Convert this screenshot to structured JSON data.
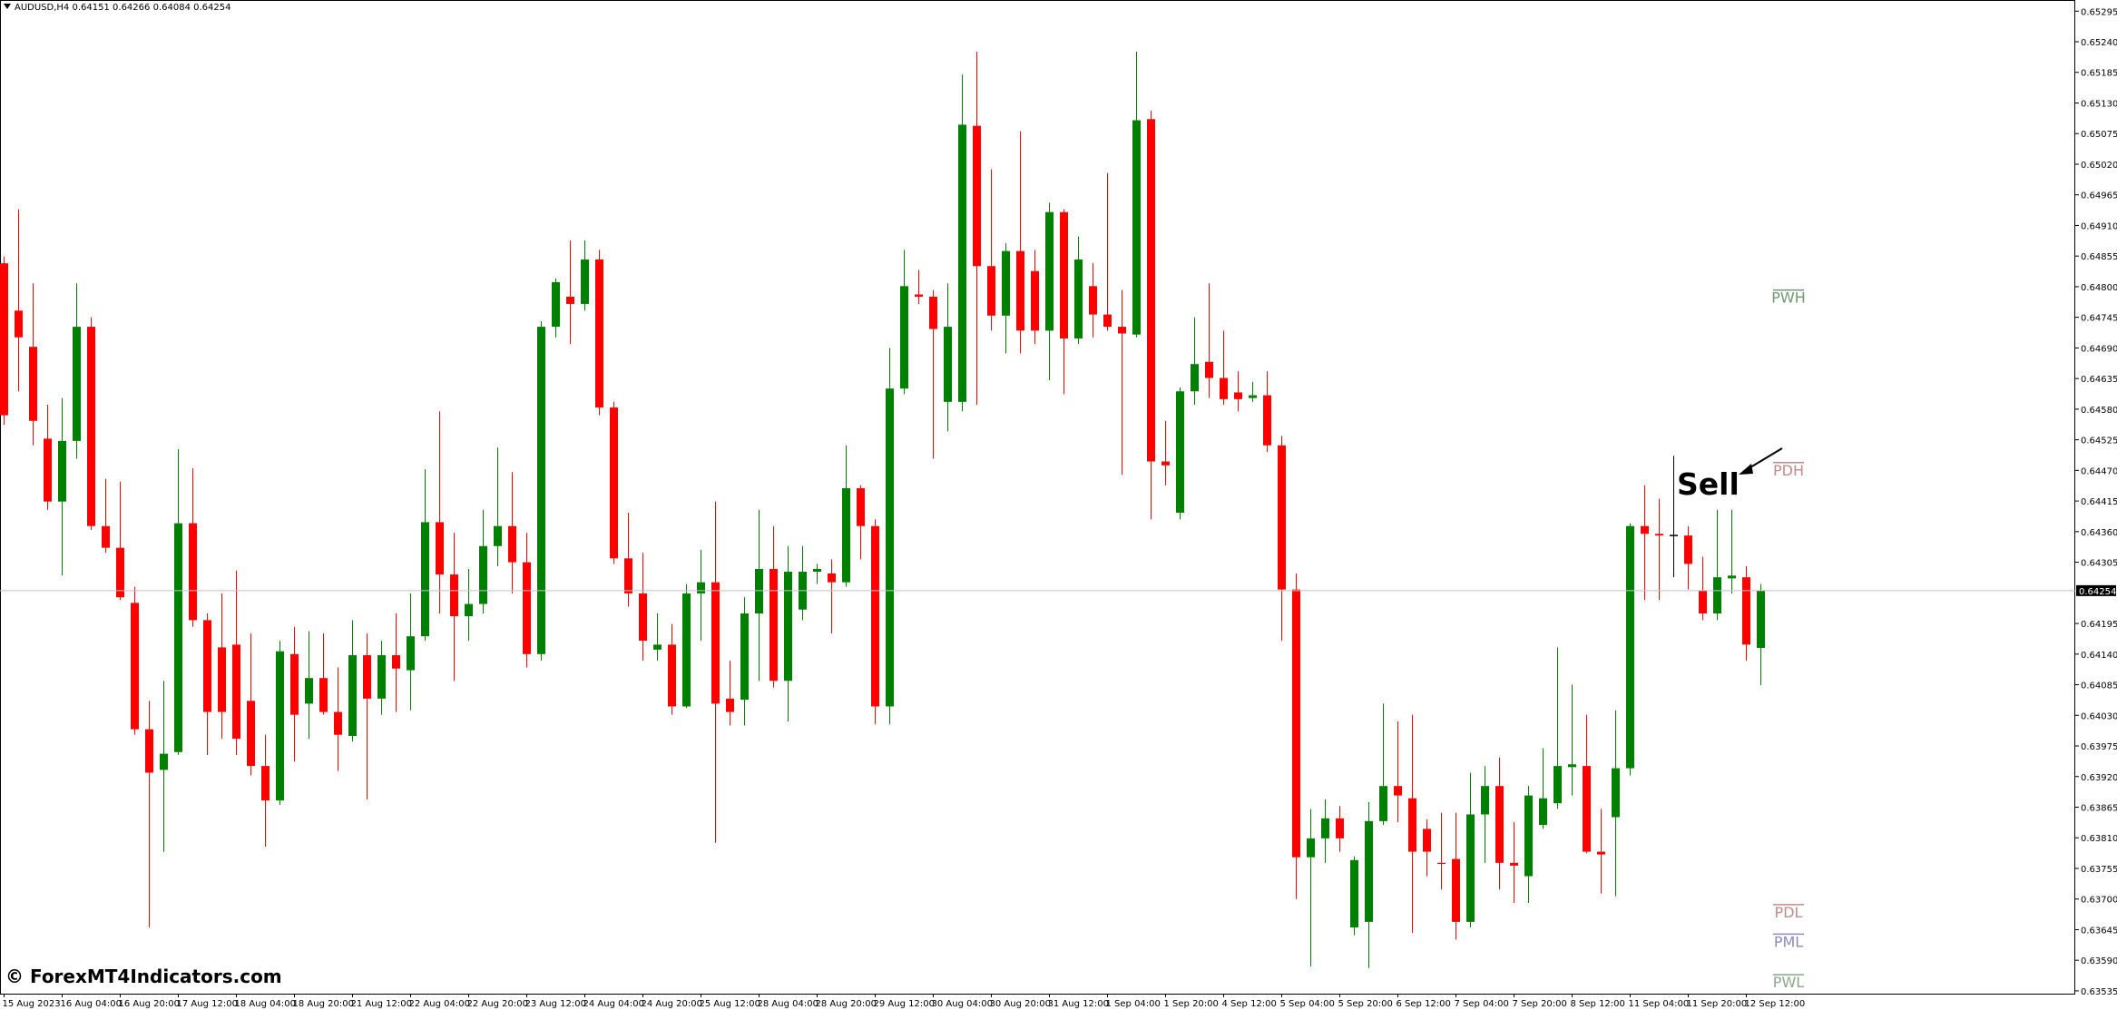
{
  "chart_data": {
    "type": "candlestick",
    "symbol": "AUDUSD,H4",
    "watermark": "© ForexMT4Indicators.com",
    "annotation": "Sell",
    "up_color": "#008000",
    "down_color": "#ff0000",
    "doji_color": "#000000",
    "ylim": [
      0.6353,
      0.65315
    ],
    "yticks": [
      0.65295,
      {
        "value": 0.6524,
        "label": "0.65240"
      },
      0.65185,
      {
        "value": 0.6513,
        "label": "0.65130"
      },
      0.65075,
      {
        "value": 0.6502,
        "label": "0.65020"
      },
      0.64965,
      {
        "value": 0.6491,
        "label": "0.64910"
      },
      0.64855,
      {
        "value": 0.648,
        "label": "0.64800"
      },
      0.64745,
      {
        "value": 0.6469,
        "label": "0.64690"
      },
      0.64635,
      {
        "value": 0.6458,
        "label": "0.64580"
      },
      0.64525,
      {
        "value": 0.6447,
        "label": "0.64470"
      },
      0.64415,
      {
        "value": 0.6436,
        "label": "0.64360"
      },
      0.64305,
      0.64195,
      {
        "value": 0.6414,
        "label": "0.64140"
      },
      0.64085,
      {
        "value": 0.6403,
        "label": "0.64030"
      },
      0.63975,
      {
        "value": 0.6392,
        "label": "0.63920"
      },
      0.63865,
      {
        "value": 0.6381,
        "label": "0.63810"
      },
      0.63755,
      {
        "value": 0.637,
        "label": "0.63700"
      },
      0.63645,
      {
        "value": 0.6359,
        "label": "0.63590"
      },
      0.63535
    ],
    "categories": [
      "15 Aug 2023",
      null,
      null,
      null,
      "16 Aug 04:00",
      null,
      null,
      null,
      "16 Aug 20:00",
      null,
      null,
      null,
      "17 Aug 12:00",
      null,
      null,
      null,
      "18 Aug 04:00",
      null,
      null,
      null,
      "18 Aug 20:00",
      null,
      null,
      null,
      "21 Aug 12:00",
      null,
      null,
      null,
      "22 Aug 04:00",
      null,
      null,
      null,
      "22 Aug 20:00",
      null,
      null,
      null,
      "23 Aug 12:00",
      null,
      null,
      null,
      "24 Aug 04:00",
      null,
      null,
      null,
      "24 Aug 20:00",
      null,
      null,
      null,
      "25 Aug 12:00",
      null,
      null,
      null,
      "28 Aug 04:00",
      null,
      null,
      null,
      "28 Aug 20:00",
      null,
      null,
      null,
      "29 Aug 12:00",
      null,
      null,
      null,
      "30 Aug 04:00",
      null,
      null,
      null,
      "30 Aug 20:00",
      null,
      null,
      null,
      "31 Aug 12:00",
      null,
      null,
      null,
      "1 Sep 04:00",
      null,
      null,
      null,
      "1 Sep 20:00",
      null,
      null,
      null,
      "4 Sep 12:00",
      null,
      null,
      null,
      "5 Sep 04:00",
      null,
      null,
      null,
      "5 Sep 20:00",
      null,
      null,
      null,
      "6 Sep 12:00",
      null,
      null,
      null,
      "7 Sep 04:00",
      null,
      null,
      null,
      "7 Sep 20:00",
      null,
      null,
      null,
      "8 Sep 12:00",
      null,
      null,
      null,
      "11 Sep 04:00",
      null,
      null,
      null,
      "11 Sep 20:00",
      null,
      null,
      null,
      "12 Sep 12:00",
      null
    ],
    "open": [
      0.64842,
      0.64757,
      0.64692,
      0.64527,
      0.64414,
      0.64523,
      0.64728,
      0.6437,
      0.64331,
      0.64232,
      0.64005,
      0.63932,
      0.63964,
      0.64375,
      0.64201,
      0.64152,
      0.64157,
      0.64056,
      0.63939,
      0.63877,
      0.6414,
      0.64051,
      0.64097,
      0.64036,
      0.63993,
      0.64138,
      0.6406,
      0.64138,
      0.64111,
      0.64172,
      0.64377,
      0.64283,
      0.64208,
      0.6423,
      0.64334,
      0.6437,
      0.64305,
      0.6414,
      0.64728,
      0.64782,
      0.64769,
      0.64849,
      0.64583,
      0.64312,
      0.64249,
      0.64148,
      0.64157,
      0.64046,
      0.64249,
      0.64269,
      0.6406,
      0.64058,
      0.64213,
      0.64293,
      0.64092,
      0.6422,
      0.64288,
      0.64285,
      0.64269,
      0.64438,
      0.6437,
      0.64046,
      0.64617,
      0.64786,
      0.64782,
      0.64593,
      0.64593,
      0.65089,
      0.64837,
      0.64748,
      0.64864,
      0.64828,
      0.64721,
      0.64934,
      0.64707,
      0.64801,
      0.6475,
      0.64728,
      0.64714,
      0.65101,
      0.64486,
      0.64394,
      0.64612,
      0.64665,
      0.64636,
      0.6461,
      0.646,
      0.64605,
      0.64515,
      0.64256,
      0.63775,
      0.63809,
      0.63845,
      0.63649,
      0.63659,
      0.6384,
      0.63903,
      0.63881,
      0.63826,
      0.63765,
      0.63772,
      0.63659,
      0.63852,
      0.63903,
      0.63765,
      0.63741,
      0.63833,
      0.63872,
      0.63937,
      0.63939,
      0.63785,
      0.63847,
      0.63935,
      0.6437,
      0.64356,
      0.64353,
      0.64353,
      0.64254,
      0.64213,
      0.64276,
      0.64278,
      0.64151
    ],
    "high": [
      0.64854,
      0.64939,
      0.64806,
      0.64588,
      0.646,
      0.64806,
      0.64745,
      0.64455,
      0.6445,
      0.64261,
      0.64056,
      0.64092,
      0.64508,
      0.64474,
      0.64213,
      0.64249,
      0.6429,
      0.64177,
      0.63995,
      0.64164,
      0.64189,
      0.64181,
      0.64177,
      0.64116,
      0.64201,
      0.64177,
      0.64164,
      0.64213,
      0.64249,
      0.64472,
      0.64576,
      0.64358,
      0.64293,
      0.64399,
      0.64511,
      0.64467,
      0.64358,
      0.64738,
      0.64815,
      0.64883,
      0.64883,
      0.64866,
      0.64593,
      0.64394,
      0.64322,
      0.64213,
      0.64194,
      0.64266,
      0.64327,
      0.64414,
      0.64128,
      0.64242,
      0.64399,
      0.6437,
      0.64334,
      0.64334,
      0.64302,
      0.6431,
      0.64515,
      0.64443,
      0.64382,
      0.6469,
      0.64866,
      0.6483,
      0.64794,
      0.64806,
      0.65181,
      0.65222,
      0.65011,
      0.64878,
      0.65079,
      0.64866,
      0.64951,
      0.64939,
      0.6489,
      0.64842,
      0.65004,
      0.64794,
      0.65222,
      0.65116,
      0.64559,
      0.64619,
      0.64745,
      0.64806,
      0.64721,
      0.64648,
      0.64629,
      0.64648,
      0.64532,
      0.64285,
      0.63862,
      0.63879,
      0.63867,
      0.63777,
      0.63874,
      0.64051,
      0.64019,
      0.64031,
      0.63843,
      0.63855,
      0.63855,
      0.63927,
      0.63939,
      0.63954,
      0.63838,
      0.63903,
      0.63971,
      0.64152,
      0.64085,
      0.64031,
      0.63862,
      0.64039,
      0.64375,
      0.64443,
      0.64419,
      0.64496,
      0.6437,
      0.64315,
      0.64399,
      0.64399,
      0.64298,
      0.64266
    ],
    "low": [
      0.64552,
      0.64612,
      0.64515,
      0.64399,
      0.64281,
      0.64491,
      0.64363,
      0.64322,
      0.64237,
      0.63995,
      0.63649,
      0.63785,
      0.63959,
      0.64189,
      0.63959,
      0.63988,
      0.63959,
      0.63922,
      0.63794,
      0.63869,
      0.63947,
      0.63988,
      0.64031,
      0.6393,
      0.63983,
      0.63879,
      0.64031,
      0.64036,
      0.64039,
      0.64164,
      0.64213,
      0.64092,
      0.64164,
      0.64213,
      0.64298,
      0.64249,
      0.64116,
      0.64128,
      0.64709,
      0.64697,
      0.64757,
      0.64569,
      0.64302,
      0.64225,
      0.64128,
      0.64128,
      0.64031,
      0.64043,
      0.64164,
      0.63801,
      0.64012,
      0.64012,
      0.64092,
      0.6408,
      0.64019,
      0.64201,
      0.64266,
      0.64177,
      0.64261,
      0.6431,
      0.64014,
      0.64014,
      0.64607,
      0.64769,
      0.64491,
      0.6454,
      0.64576,
      0.64588,
      0.64721,
      0.6468,
      0.6468,
      0.64697,
      0.64632,
      0.64607,
      0.64697,
      0.64709,
      0.64721,
      0.64462,
      0.64709,
      0.64382,
      0.64443,
      0.64382,
      0.64588,
      0.646,
      0.64588,
      0.64576,
      0.64593,
      0.64503,
      0.64164,
      0.637,
      0.63579,
      0.63765,
      0.63785,
      0.63635,
      0.63576,
      0.63833,
      0.63838,
      0.63639,
      0.63741,
      0.63717,
      0.63627,
      0.63649,
      0.63765,
      0.63717,
      0.63693,
      0.63693,
      0.63826,
      0.63862,
      0.63886,
      0.63782,
      0.6371,
      0.63705,
      0.63922,
      0.64237,
      0.64237,
      0.64278,
      0.64256,
      0.64201,
      0.64201,
      0.64249,
      0.64128,
      0.64084
    ],
    "close": [
      0.64569,
      0.64709,
      0.64559,
      0.64414,
      0.64523,
      0.64728,
      0.6437,
      0.64331,
      0.64242,
      0.64005,
      0.63927,
      0.63961,
      0.64375,
      0.64201,
      0.64036,
      0.64036,
      0.63988,
      0.63939,
      0.63877,
      0.64145,
      0.64031,
      0.64097,
      0.64036,
      0.63995,
      0.64138,
      0.6406,
      0.64138,
      0.64114,
      0.64172,
      0.64377,
      0.64283,
      0.64208,
      0.6423,
      0.64334,
      0.6437,
      0.64305,
      0.6414,
      0.64728,
      0.64808,
      0.64769,
      0.64849,
      0.64583,
      0.64312,
      0.64249,
      0.64164,
      0.64157,
      0.64046,
      0.64249,
      0.64269,
      0.64051,
      0.64036,
      0.64213,
      0.64293,
      0.64092,
      0.64288,
      0.64288,
      0.64293,
      0.64269,
      0.64438,
      0.6437,
      0.64046,
      0.64617,
      0.64801,
      0.64782,
      0.64724,
      0.64728,
      0.65091,
      0.64837,
      0.64748,
      0.64864,
      0.64721,
      0.64721,
      0.64934,
      0.64707,
      0.64849,
      0.6475,
      0.64728,
      0.64716,
      0.65099,
      0.64486,
      0.64479,
      0.64612,
      0.64661,
      0.64636,
      0.64598,
      0.64598,
      0.64605,
      0.64515,
      0.64256,
      0.63775,
      0.63809,
      0.63845,
      0.63809,
      0.6377,
      0.6384,
      0.63903,
      0.63886,
      0.63785,
      0.63785,
      0.63763,
      0.63659,
      0.63852,
      0.63903,
      0.63765,
      0.6376,
      0.63886,
      0.63881,
      0.63939,
      0.63942,
      0.63785,
      0.6378,
      0.63935,
      0.6437,
      0.64356,
      0.64353,
      0.64353,
      0.64302,
      0.64213,
      0.64278,
      0.64281,
      0.64157,
      0.64254
    ],
    "levels": [
      {
        "label": "PWH",
        "value": 0.64794,
        "color": "#6f9a6f"
      },
      {
        "label": "PDH",
        "value": 0.64484,
        "color": "#c48a8a"
      },
      {
        "label": "PDL",
        "value": 0.6369,
        "color": "#c48a8a"
      },
      {
        "label": "PML",
        "value": 0.63637,
        "color": "#8a8ac4"
      },
      {
        "label": "PWL",
        "value": 0.63564,
        "color": "#8aa88a"
      }
    ]
  }
}
